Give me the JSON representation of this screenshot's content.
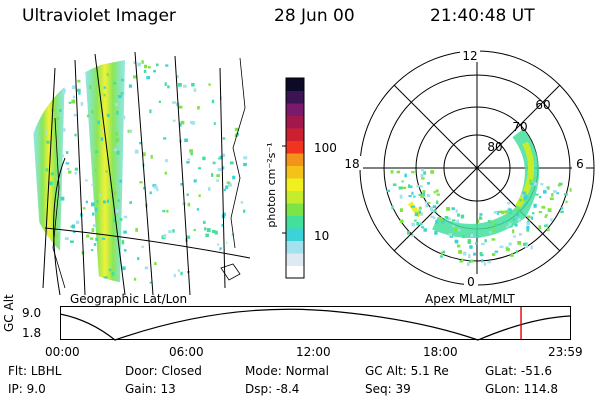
{
  "header": {
    "title": "Ultraviolet Imager",
    "date": "28 Jun 00",
    "time": "21:40:48 UT"
  },
  "colorbar": {
    "unit_label": "photon cm⁻²s⁻¹",
    "ticks": [
      "100",
      "10"
    ],
    "colors": [
      "#ffffff",
      "#dde9f3",
      "#a4e0ee",
      "#3cd3d8",
      "#43e09c",
      "#7de445",
      "#c6ec2e",
      "#f0f020",
      "#f5c21a",
      "#f4931c",
      "#f0341e",
      "#cd1f32",
      "#a3184c",
      "#7a1a6a",
      "#3b1454",
      "#0c0a26"
    ]
  },
  "left_panel": {
    "caption": "Geographic Lat/Lon"
  },
  "right_panel": {
    "caption": "Apex  MLat/MLT",
    "mlt_labels": [
      "12",
      "18",
      "6",
      "0"
    ],
    "lat_labels": [
      "60",
      "70",
      "80"
    ]
  },
  "altitude_plot": {
    "ylabel": "GC Alt",
    "yticks": [
      "9.0",
      "1.8"
    ],
    "xticks": [
      "00:00",
      "06:00",
      "12:00",
      "18:00",
      "23:59"
    ],
    "current_time_marker_fraction": 0.904
  },
  "status": {
    "row1": [
      {
        "label": "Flt:",
        "value": "LBHL"
      },
      {
        "label": "Door:",
        "value": "Closed"
      },
      {
        "label": "Mode:",
        "value": "Normal"
      },
      {
        "label": "GC Alt:",
        "value": "5.1 Re"
      },
      {
        "label": "GLat:",
        "value": "-51.6"
      }
    ],
    "row2": [
      {
        "label": "IP:",
        "value": "9.0"
      },
      {
        "label": "Gain:",
        "value": "13"
      },
      {
        "label": "Dsp:",
        "value": "-8.4"
      },
      {
        "label": "Seq:",
        "value": "39"
      },
      {
        "label": "GLon:",
        "value": "114.8"
      }
    ]
  }
}
